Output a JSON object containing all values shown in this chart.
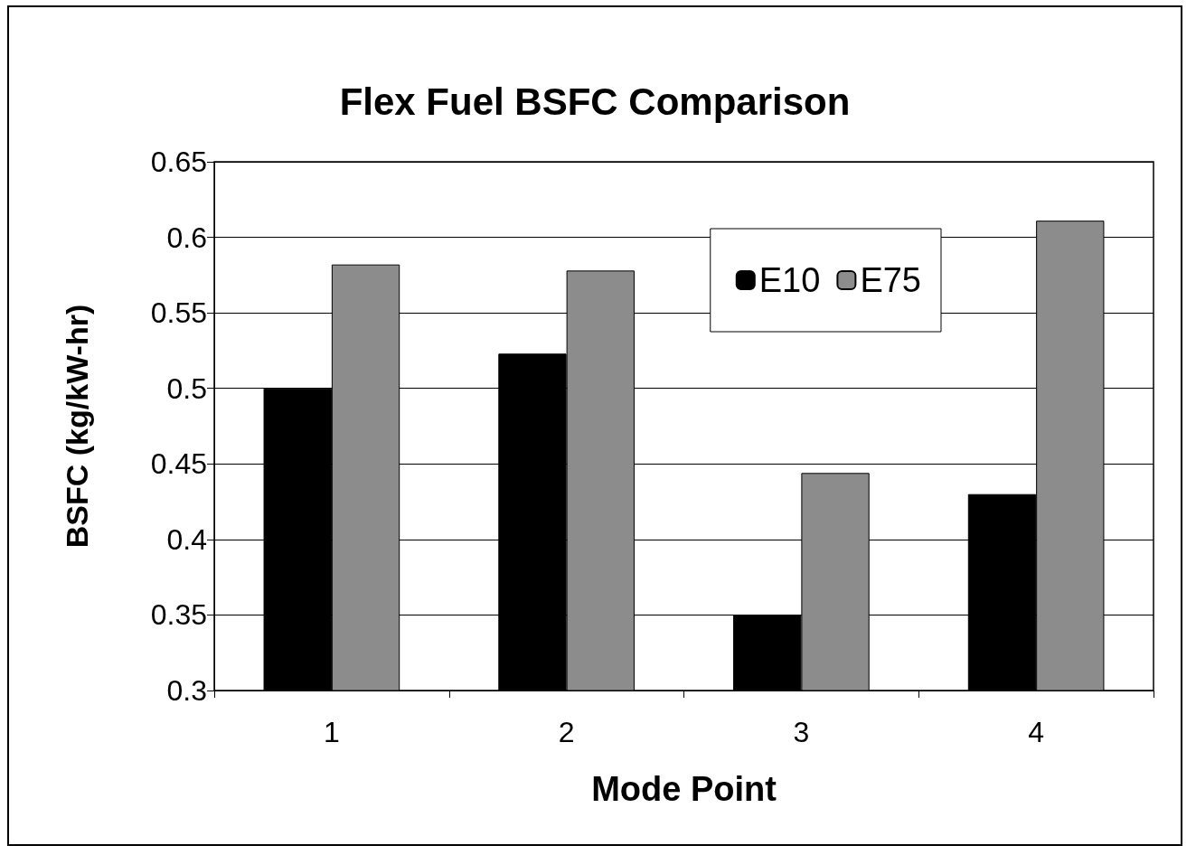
{
  "chart_data": {
    "type": "bar",
    "title": "Flex Fuel BSFC Comparison",
    "xlabel": "Mode Point",
    "ylabel": "BSFC (kg/kW-hr)",
    "categories": [
      "1",
      "2",
      "3",
      "4"
    ],
    "series": [
      {
        "name": "E10",
        "color": "#000000",
        "values": [
          0.5,
          0.523,
          0.35,
          0.43
        ]
      },
      {
        "name": "E75",
        "color": "#8c8c8c",
        "values": [
          0.582,
          0.578,
          0.444,
          0.611
        ]
      }
    ],
    "ylim": [
      0.3,
      0.65
    ],
    "yticks": [
      0.3,
      0.35,
      0.4,
      0.45,
      0.5,
      0.55,
      0.6,
      0.65
    ],
    "grid": "y",
    "legend": "top right"
  }
}
